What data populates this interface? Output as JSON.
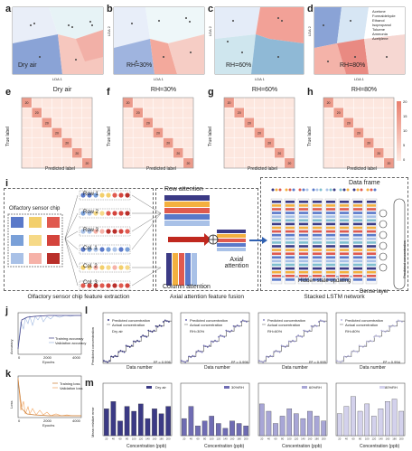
{
  "panels": {
    "a": "a",
    "b": "b",
    "c": "c",
    "d": "d",
    "e": "e",
    "f": "f",
    "g": "g",
    "h": "h",
    "i": "i",
    "j": "j",
    "k": "k",
    "l": "l",
    "m": "m"
  },
  "lda": [
    {
      "tag": "Dry air",
      "axis_x": "LDA 1",
      "axis_y": "LDA 2"
    },
    {
      "tag": "RH=30%",
      "axis_x": "LDA 1",
      "axis_y": "LDA 2"
    },
    {
      "tag": "RH=60%",
      "axis_x": "LDA 1",
      "axis_y": "LDA 2"
    },
    {
      "tag": "RH=80%",
      "axis_x": "LDA 1",
      "axis_y": "LDA 2"
    }
  ],
  "lda_legend": [
    "Acetone",
    "Formaldehyde",
    "Ethanol",
    "Isopropanol",
    "Toluene",
    "Ammonia",
    "Acetylene"
  ],
  "confusion": [
    {
      "title": "Dry air"
    },
    {
      "title": "RH=30%"
    },
    {
      "title": "RH=60%"
    },
    {
      "title": "RH=80%"
    }
  ],
  "confusion_axes": {
    "x": "Predicted label",
    "y": "True label"
  },
  "confusion_diag": [
    20,
    20,
    20,
    20,
    20,
    20,
    20
  ],
  "colorbar_ticks": [
    "20",
    "15",
    "10",
    "5",
    "0"
  ],
  "panel_i": {
    "chip_title": "Olfactory sensor chip",
    "rows": [
      "Row 1",
      "Row 2",
      "Row 3",
      "Col. 1",
      "Col. 2",
      "Col. 3"
    ],
    "row_attention": "Row attention",
    "column_attention": "Column attention",
    "axial_attention": "Axial attention",
    "data_frame": "Data frame",
    "hidden_state": "Hidden state updating",
    "dense_layer": "Dense layer",
    "predicted_conc": "Predicted concentration",
    "footer": [
      "Olfactory sensor chip feature extraction",
      "Axial attention feature fusion",
      "Stacked LSTM network"
    ]
  },
  "panel_j": {
    "ylabel": "Accuracy",
    "xlabel": "Epochs",
    "legend": [
      "Training accuracy",
      "Validation accuracy"
    ],
    "xticks": [
      "0",
      "2000",
      "4000"
    ]
  },
  "panel_k": {
    "ylabel": "Loss",
    "xlabel": "Epochs",
    "legend": [
      "Training loss",
      "Validation loss"
    ],
    "xticks": [
      "0",
      "2000",
      "4000"
    ]
  },
  "panel_l": {
    "ylabel": "Predicted concentration",
    "xlabel": "Data number",
    "legend": [
      "Predicted concentration",
      "Actual concentration"
    ],
    "subplots": [
      {
        "tag": "Dry air",
        "r2": "R² = 0.996"
      },
      {
        "tag": "RH=30%",
        "r2": "R² = 0.996"
      },
      {
        "tag": "RH=60%",
        "r2": "R² = 0.995"
      },
      {
        "tag": "RH=80%",
        "r2": "R² = 0.994"
      }
    ]
  },
  "panel_m": {
    "ylabel": "Mean relative error",
    "xlabel": "Concentration (ppb)",
    "categories": [
      "20",
      "40",
      "60",
      "80",
      "100",
      "120",
      "140",
      "160",
      "180",
      "200"
    ],
    "subplots": [
      {
        "tag": "Dry air",
        "color": "#3b3a85",
        "values": [
          0.11,
          0.14,
          0.06,
          0.12,
          0.1,
          0.13,
          0.07,
          0.11,
          0.09,
          0.12
        ]
      },
      {
        "tag": "30%RH",
        "color": "#6f6cb3",
        "values": [
          0.07,
          0.12,
          0.04,
          0.06,
          0.08,
          0.05,
          0.03,
          0.06,
          0.05,
          0.04
        ]
      },
      {
        "tag": "60%RH",
        "color": "#a8a6d6",
        "values": [
          0.13,
          0.1,
          0.05,
          0.08,
          0.11,
          0.09,
          0.07,
          0.1,
          0.08,
          0.06
        ]
      },
      {
        "tag": "80%RH",
        "color": "#d3d1ec",
        "values": [
          0.09,
          0.12,
          0.16,
          0.1,
          0.13,
          0.08,
          0.11,
          0.14,
          0.15,
          0.1
        ]
      }
    ]
  },
  "colors": {
    "blue": "#8aa3d6",
    "red": "#e5837a",
    "yellow": "#f3cf6b",
    "teal": "#7fbfcf",
    "purple": "#3b3a85"
  }
}
